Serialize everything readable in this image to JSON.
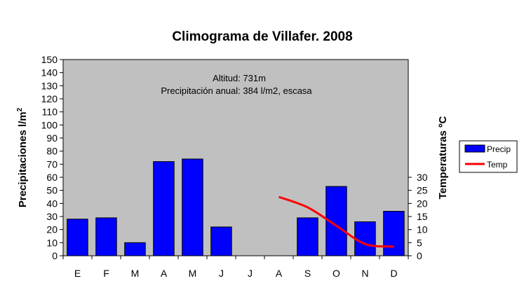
{
  "chart_data": {
    "type": "bar",
    "title": "Climograma de Villafer. 2008",
    "annotations": [
      "Altitud: 731m",
      "Precipitación anual: 384 l/m2, escasa"
    ],
    "categories": [
      "E",
      "F",
      "M",
      "A",
      "M",
      "J",
      "J",
      "A",
      "S",
      "O",
      "N",
      "D"
    ],
    "series": [
      {
        "name": "Precip",
        "type": "bar",
        "axis": "left",
        "values": [
          28,
          29,
          10,
          72,
          74,
          22,
          null,
          null,
          29,
          53,
          26,
          34
        ],
        "color": "#0000ff"
      },
      {
        "name": "Temp",
        "type": "line",
        "axis": "right",
        "values": [
          null,
          null,
          null,
          null,
          null,
          null,
          null,
          22.5,
          18.5,
          11.5,
          4.5,
          3.5
        ],
        "color": "#ff0000"
      }
    ],
    "ylabel": "Precipitaciones  l/m",
    "ylabel_sup": "2",
    "ylim": [
      0,
      150
    ],
    "yticks": [
      "0",
      "10",
      "20",
      "30",
      "40",
      "50",
      "60",
      "70",
      "80",
      "90",
      "100",
      "110",
      "120",
      "130",
      "140",
      "150"
    ],
    "y2label": "Temperaturas  ºC",
    "y2lim": [
      0,
      75
    ],
    "y2ticks": [
      "0",
      "5",
      "10",
      "15",
      "20",
      "25",
      "30"
    ],
    "legend_position": "right",
    "plot_background": "#c0c0c0",
    "grid": false
  }
}
